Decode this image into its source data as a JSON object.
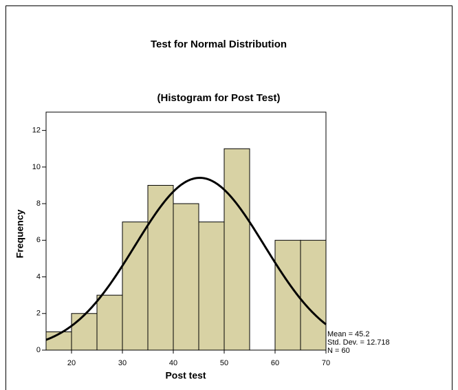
{
  "chart_data": {
    "type": "histogram",
    "title": "Test for Normal Distribution",
    "subtitle": "(Histogram for Post Test)",
    "x_label": "Post test",
    "y_label": "Frequency",
    "bins": [
      15,
      20,
      25,
      30,
      35,
      40,
      45,
      50,
      55,
      60,
      65,
      70
    ],
    "values": [
      1,
      2,
      3,
      7,
      9,
      8,
      7,
      11,
      0,
      6,
      6
    ],
    "color": "#d8d2a4",
    "xlim": [
      15,
      70
    ],
    "xticks": [
      20,
      30,
      40,
      50,
      60,
      70
    ],
    "ylim": [
      0,
      13
    ],
    "yticks": [
      0,
      2,
      4,
      6,
      8,
      10,
      12
    ],
    "stats": [
      {
        "value": 45.2,
        "label": "Mean = 45.2"
      },
      {
        "value": 12.718,
        "label": "Std. Dev. = 12.718"
      },
      {
        "value": 60,
        "label": "N = 60"
      }
    ]
  }
}
